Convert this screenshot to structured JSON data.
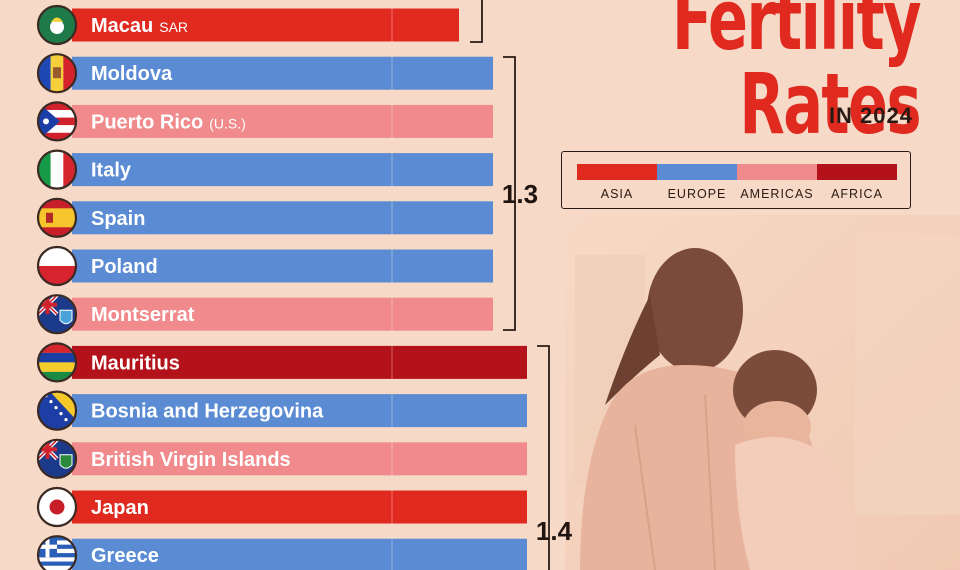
{
  "title": "Fertility Rates",
  "subtitle": "IN 2024",
  "legend": [
    {
      "name": "ASIA",
      "color": "#e0291f"
    },
    {
      "name": "EUROPE",
      "color": "#5b8bd2"
    },
    {
      "name": "AMERICAS",
      "color": "#f08a8c"
    },
    {
      "name": "AFRICA",
      "color": "#b3121a"
    }
  ],
  "chart_data": {
    "type": "bar",
    "orientation": "horizontal",
    "title": "Fertility Rates",
    "subtitle": "IN 2024",
    "group_labels": [
      "1.3",
      "1.4"
    ],
    "bars": [
      {
        "country": "Macau",
        "suffix": "SAR",
        "region": "ASIA",
        "value": 1.2,
        "flag": "macau-flag-icon"
      },
      {
        "country": "Moldova",
        "suffix": "",
        "region": "EUROPE",
        "value": 1.3,
        "flag": "moldova-flag-icon"
      },
      {
        "country": "Puerto Rico",
        "suffix": "(U.S.)",
        "region": "AMERICAS",
        "value": 1.3,
        "flag": "puerto-rico-flag-icon"
      },
      {
        "country": "Italy",
        "suffix": "",
        "region": "EUROPE",
        "value": 1.3,
        "flag": "italy-flag-icon"
      },
      {
        "country": "Spain",
        "suffix": "",
        "region": "EUROPE",
        "value": 1.3,
        "flag": "spain-flag-icon"
      },
      {
        "country": "Poland",
        "suffix": "",
        "region": "EUROPE",
        "value": 1.3,
        "flag": "poland-flag-icon"
      },
      {
        "country": "Montserrat",
        "suffix": "",
        "region": "AMERICAS",
        "value": 1.3,
        "flag": "montserrat-flag-icon"
      },
      {
        "country": "Mauritius",
        "suffix": "",
        "region": "AFRICA",
        "value": 1.4,
        "flag": "mauritius-flag-icon"
      },
      {
        "country": "Bosnia and Herzegovina",
        "suffix": "",
        "region": "EUROPE",
        "value": 1.4,
        "flag": "bosnia-flag-icon"
      },
      {
        "country": "British Virgin Islands",
        "suffix": "",
        "region": "AMERICAS",
        "value": 1.4,
        "flag": "bvi-flag-icon"
      },
      {
        "country": "Japan",
        "suffix": "",
        "region": "ASIA",
        "value": 1.4,
        "flag": "japan-flag-icon"
      },
      {
        "country": "Greece",
        "suffix": "",
        "region": "EUROPE",
        "value": 1.4,
        "flag": "greece-flag-icon"
      }
    ]
  }
}
